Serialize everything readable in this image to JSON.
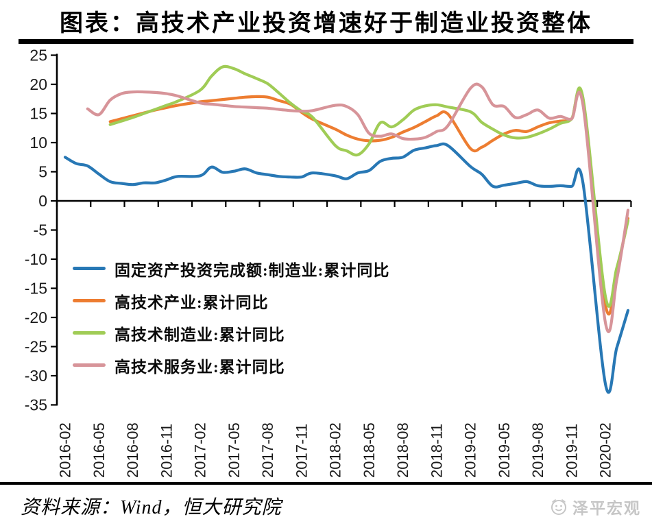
{
  "page": {
    "title": "图表：高技术产业投资增速好于制造业投资整体",
    "source_text": "资料来源：Wind，恒大研究院",
    "watermark_text": "泽平宏观",
    "colors": {
      "title": "#000000",
      "rule": "#000000",
      "axis": "#000000",
      "tick_label": "#1a1a1a",
      "watermark": "#c6c6c6",
      "background": "#ffffff"
    }
  },
  "chart_data": {
    "type": "line",
    "title": "图表：高技术产业投资增速好于制造业投资整体",
    "xlabel": "",
    "ylabel": "",
    "ylim": [
      -35,
      25
    ],
    "y_tick_step": 5,
    "y_tick_labels": [
      "25",
      "20",
      "15",
      "10",
      "5",
      "0",
      "-5",
      "-10",
      "-15",
      "-20",
      "-25",
      "-30",
      "-35"
    ],
    "x_tick_labels": [
      "2016-02",
      "2016-05",
      "2016-08",
      "2016-11",
      "2017-02",
      "2017-05",
      "2017-08",
      "2017-11",
      "2018-02",
      "2018-05",
      "2018-08",
      "2018-11",
      "2019-02",
      "2019-05",
      "2019-08",
      "2019-11",
      "2020-02"
    ],
    "grid": false,
    "smoothed": true,
    "legend_position": "inside-left",
    "months": [
      "2016-02",
      "2016-03",
      "2016-04",
      "2016-05",
      "2016-06",
      "2016-07",
      "2016-08",
      "2016-09",
      "2016-10",
      "2016-11",
      "2016-12",
      "2017-02",
      "2017-03",
      "2017-04",
      "2017-05",
      "2017-06",
      "2017-07",
      "2017-08",
      "2017-09",
      "2017-10",
      "2017-11",
      "2017-12",
      "2018-02",
      "2018-03",
      "2018-04",
      "2018-05",
      "2018-06",
      "2018-07",
      "2018-08",
      "2018-09",
      "2018-10",
      "2018-11",
      "2018-12",
      "2019-02",
      "2019-03",
      "2019-04",
      "2019-05",
      "2019-06",
      "2019-07",
      "2019-08",
      "2019-09",
      "2019-10",
      "2019-11",
      "2019-12",
      "2020-02",
      "2020-03",
      "2020-04"
    ],
    "series": [
      {
        "name": "固定资产投资完成额:制造业:累计同比",
        "color": "#2878b5",
        "values": [
          7.5,
          6.4,
          6.0,
          4.6,
          3.3,
          3.0,
          2.8,
          3.1,
          3.1,
          3.6,
          4.2,
          4.3,
          5.8,
          4.9,
          5.1,
          5.5,
          4.8,
          4.5,
          4.2,
          4.1,
          4.1,
          4.8,
          4.3,
          3.8,
          4.8,
          5.2,
          6.8,
          7.3,
          7.5,
          8.7,
          9.1,
          9.5,
          9.5,
          5.9,
          4.6,
          2.5,
          2.7,
          3.0,
          3.3,
          2.6,
          2.5,
          2.6,
          2.5,
          3.1,
          -31.5,
          -25.2,
          -18.8
        ]
      },
      {
        "name": "高技术产业:累计同比",
        "color": "#ed7d31",
        "values": [
          null,
          null,
          null,
          null,
          13.6,
          14.1,
          14.6,
          15.1,
          15.6,
          16.0,
          16.4,
          17.0,
          17.2,
          17.4,
          17.6,
          17.8,
          17.9,
          17.8,
          17.2,
          16.6,
          15.2,
          14.0,
          12.3,
          11.3,
          10.6,
          10.3,
          10.4,
          10.9,
          11.8,
          12.6,
          13.6,
          14.6,
          14.9,
          9.0,
          9.2,
          10.4,
          11.5,
          12.1,
          11.9,
          12.7,
          13.4,
          13.7,
          14.1,
          17.3,
          -17.9,
          -12.1,
          -3.0
        ]
      },
      {
        "name": "高技术制造业:累计同比",
        "color": "#a0cc56",
        "values": [
          null,
          null,
          null,
          null,
          13.1,
          13.7,
          14.3,
          15.0,
          15.7,
          16.4,
          17.1,
          19.0,
          21.4,
          23.0,
          22.7,
          21.8,
          21.0,
          20.1,
          18.5,
          16.8,
          15.4,
          14.3,
          9.5,
          8.6,
          7.9,
          9.8,
          13.4,
          12.7,
          13.9,
          15.6,
          16.3,
          16.5,
          16.1,
          15.3,
          13.5,
          12.3,
          11.3,
          10.8,
          10.9,
          11.5,
          12.3,
          13.3,
          14.1,
          17.7,
          -16.5,
          -11.5,
          -3.4
        ]
      },
      {
        "name": "高技术服务业:累计同比",
        "color": "#d79499",
        "values": [
          null,
          null,
          15.8,
          14.8,
          17.3,
          18.4,
          18.7,
          18.7,
          18.6,
          18.4,
          18.0,
          16.8,
          16.6,
          16.4,
          16.2,
          16.1,
          16.0,
          15.9,
          15.7,
          15.5,
          15.4,
          15.5,
          16.4,
          16.2,
          14.8,
          11.6,
          11.1,
          11.5,
          10.7,
          10.6,
          10.9,
          11.9,
          12.9,
          19.3,
          19.6,
          16.5,
          16.2,
          14.3,
          14.8,
          15.6,
          14.2,
          14.5,
          14.1,
          16.5,
          -21.0,
          -13.5,
          -1.6
        ]
      }
    ]
  }
}
